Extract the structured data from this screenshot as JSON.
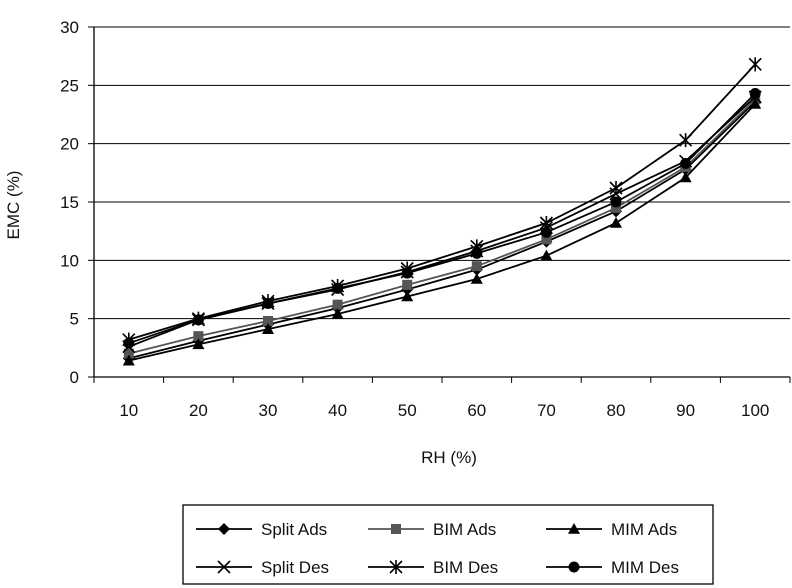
{
  "chart_data": {
    "type": "line",
    "title": "",
    "xlabel": "RH (%)",
    "ylabel": "EMC (%)",
    "categories": [
      "10",
      "20",
      "30",
      "40",
      "50",
      "60",
      "70",
      "80",
      "90",
      "100"
    ],
    "ylim": [
      0,
      30
    ],
    "yticks": [
      "0",
      "5",
      "10",
      "15",
      "20",
      "25",
      "30"
    ],
    "grid": "horizontal",
    "legend_position": "bottom",
    "series": [
      {
        "name": "Split Ads",
        "marker": "diamond",
        "color": "#000000",
        "values": [
          1.6,
          3.1,
          4.5,
          5.9,
          7.5,
          9.2,
          11.6,
          14.2,
          17.8,
          23.6
        ]
      },
      {
        "name": "BIM Ads",
        "marker": "square",
        "color": "#555555",
        "values": [
          2.0,
          3.5,
          4.8,
          6.2,
          7.9,
          9.5,
          11.8,
          14.5,
          18.0,
          23.8
        ]
      },
      {
        "name": "MIM Ads",
        "marker": "triangle",
        "color": "#000000",
        "values": [
          1.4,
          2.8,
          4.1,
          5.4,
          6.9,
          8.4,
          10.4,
          13.2,
          17.1,
          23.4
        ]
      },
      {
        "name": "Split Des",
        "marker": "x",
        "color": "#000000",
        "values": [
          2.6,
          4.9,
          6.3,
          7.5,
          9.0,
          10.8,
          12.8,
          15.7,
          18.5,
          24.0
        ]
      },
      {
        "name": "BIM Des",
        "marker": "asterisk",
        "color": "#000000",
        "values": [
          3.2,
          5.0,
          6.5,
          7.8,
          9.3,
          11.2,
          13.2,
          16.2,
          20.3,
          26.8
        ]
      },
      {
        "name": "MIM Des",
        "marker": "circle",
        "color": "#000000",
        "values": [
          2.9,
          4.9,
          6.3,
          7.6,
          8.9,
          10.6,
          12.4,
          15.0,
          18.3,
          24.3
        ]
      }
    ]
  }
}
